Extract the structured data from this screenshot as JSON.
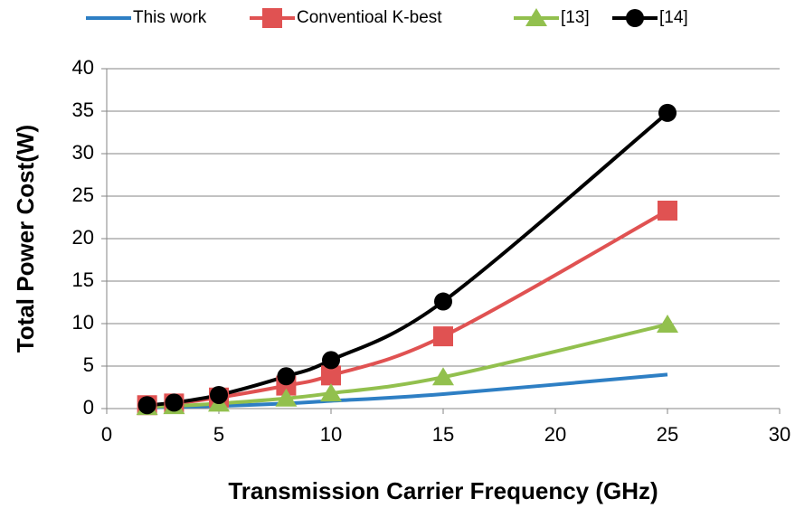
{
  "chart_data": {
    "type": "line",
    "x_label": "Transmission Carrier Frequency (GHz)",
    "y_label": "Total Power Cost(W)",
    "xlim": [
      0,
      30
    ],
    "xticks": [
      0,
      5,
      10,
      15,
      20,
      25,
      30
    ],
    "ylim": [
      0,
      40
    ],
    "yticks": [
      0,
      5,
      10,
      15,
      20,
      25,
      30,
      35,
      40
    ],
    "grid": true,
    "smooth": true,
    "legend": "top",
    "series": [
      {
        "name": "This work",
        "color": "#2e7fc4",
        "marker": "none",
        "x": [
          1.8,
          3,
          5,
          8,
          10,
          15,
          25
        ],
        "values": [
          0.1,
          0.2,
          0.3,
          0.6,
          0.9,
          1.7,
          4.0
        ]
      },
      {
        "name": "Conventioal K-best",
        "color": "#e05252",
        "marker": "square",
        "x": [
          1.8,
          3,
          5,
          8,
          10,
          15,
          25
        ],
        "values": [
          0.4,
          0.6,
          1.3,
          2.7,
          3.9,
          8.5,
          23.3
        ]
      },
      {
        "name": "[13]",
        "color": "#92c04e",
        "marker": "triangle",
        "x": [
          1.8,
          3,
          5,
          8,
          10,
          15,
          25
        ],
        "values": [
          0.2,
          0.3,
          0.6,
          1.2,
          1.8,
          3.7,
          9.9
        ]
      },
      {
        "name": "[14]",
        "color": "#000000",
        "marker": "circle",
        "x": [
          1.8,
          3,
          5,
          8,
          10,
          15,
          25
        ],
        "values": [
          0.4,
          0.7,
          1.6,
          3.8,
          5.7,
          12.6,
          34.8
        ]
      }
    ]
  }
}
